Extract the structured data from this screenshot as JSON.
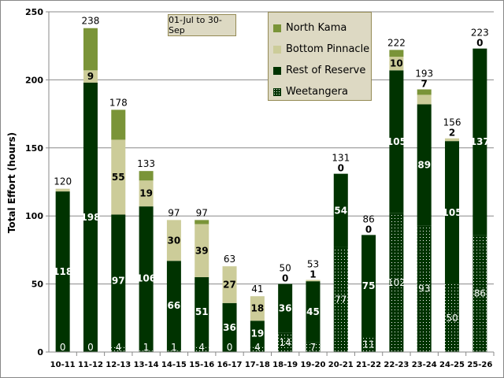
{
  "chart_data": {
    "type": "bar",
    "stacked": true,
    "title": "",
    "period_label": "01-Jul to 30-Sep",
    "xlabel": "",
    "ylabel": "Total Effort  (hours)",
    "ylim": [
      0,
      250
    ],
    "yticks": [
      0,
      50,
      100,
      150,
      200,
      250
    ],
    "grid": true,
    "legend_position": "top-right",
    "categories": [
      "10-11",
      "11-12",
      "12-13",
      "13-14",
      "14-15",
      "15-16",
      "16-17",
      "17-18",
      "18-19",
      "19-20",
      "20-21",
      "21-22",
      "22-23",
      "23-24",
      "24-25",
      "25-26"
    ],
    "totals": [
      120,
      238,
      178,
      133,
      97,
      97,
      63,
      41,
      50,
      53,
      131,
      86,
      222,
      193,
      156,
      223
    ],
    "series": [
      {
        "name": "Weetangera",
        "color": "#003300",
        "pattern": "dots",
        "values": [
          0,
          0,
          4,
          1,
          1,
          4,
          0,
          4,
          14,
          7,
          77,
          11,
          102,
          93,
          50,
          86
        ]
      },
      {
        "name": "Rest of Reserve",
        "color": "#003300",
        "values": [
          118,
          198,
          97,
          106,
          66,
          51,
          36,
          19,
          36,
          45,
          54,
          75,
          105,
          89,
          105,
          137
        ]
      },
      {
        "name": "Bottom Pinnacle",
        "color": "#cccc99",
        "values": [
          2,
          9,
          55,
          19,
          30,
          39,
          27,
          18,
          0,
          1,
          0,
          0,
          10,
          7,
          2,
          0
        ],
        "labels": [
          null,
          9,
          55,
          19,
          30,
          39,
          27,
          18,
          0,
          1,
          0,
          0,
          10,
          7,
          2,
          0
        ]
      },
      {
        "name": "North Kama",
        "color": "#7a9438",
        "values": [
          0,
          31,
          22,
          7,
          0,
          3,
          0,
          0,
          0,
          0,
          0,
          0,
          5,
          4,
          0,
          0
        ]
      }
    ],
    "legend_order": [
      "North Kama",
      "Bottom Pinnacle",
      "Rest of Reserve",
      "Weetangera"
    ]
  }
}
